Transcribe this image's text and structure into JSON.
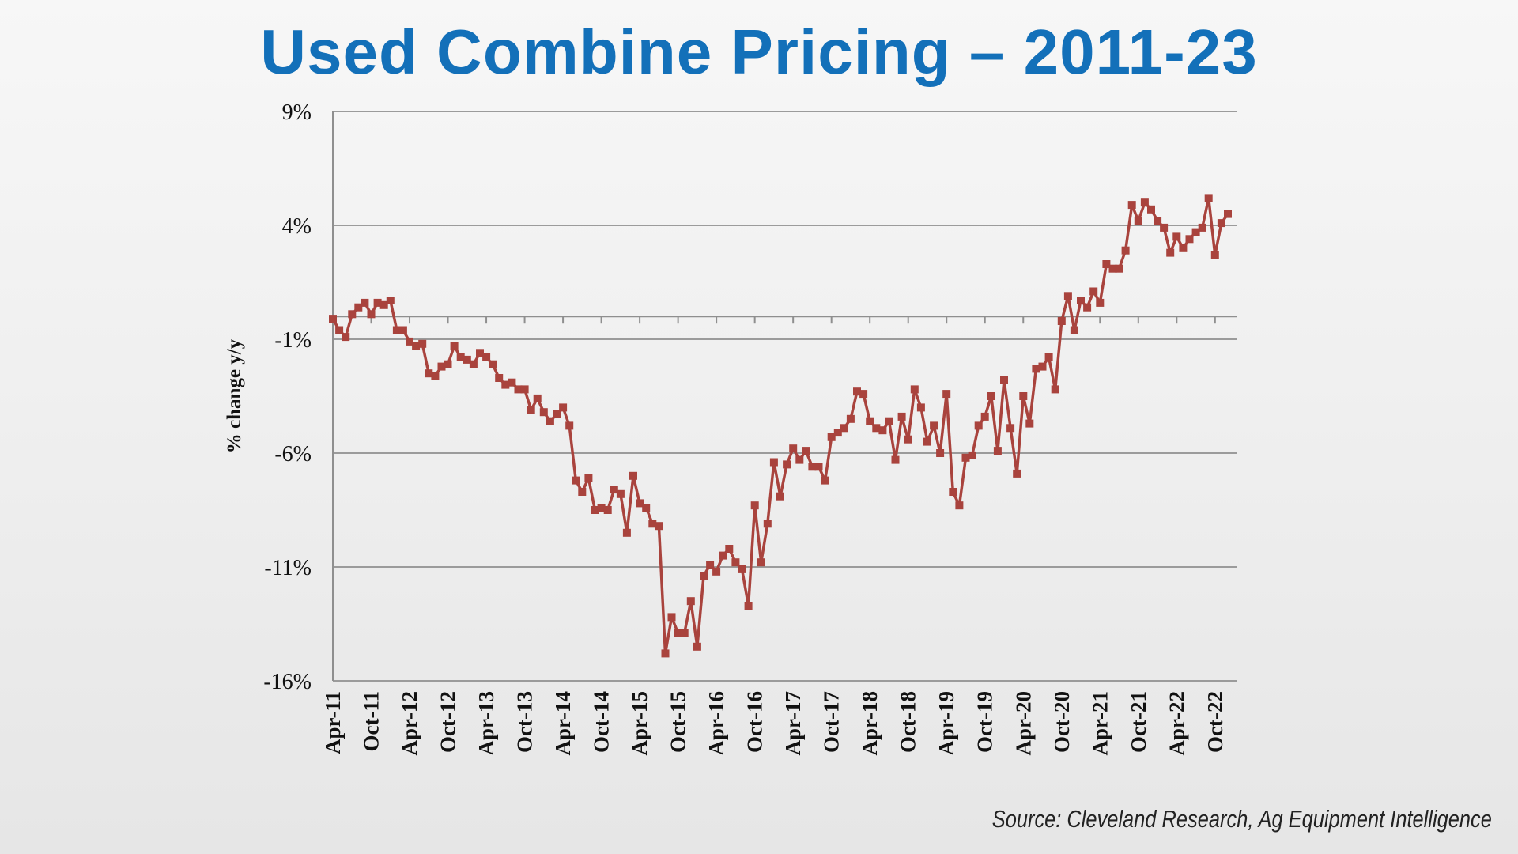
{
  "chart_data": {
    "type": "line",
    "title": "Used Combine Pricing – 2011-23",
    "ylabel": "% change y/y",
    "xlabel": "",
    "ylim": [
      -16,
      9
    ],
    "y_ticks": [
      9,
      4,
      -1,
      -6,
      -11,
      -16
    ],
    "y_tick_labels": [
      "9%",
      "4%",
      "-1%",
      "-6%",
      "-11%",
      "-16%"
    ],
    "x_ticks": [
      "Apr-11",
      "Oct-11",
      "Apr-12",
      "Oct-12",
      "Apr-13",
      "Oct-13",
      "Apr-14",
      "Oct-14",
      "Apr-15",
      "Oct-15",
      "Apr-16",
      "Oct-16",
      "Apr-17",
      "Oct-17",
      "Apr-18",
      "Oct-18",
      "Apr-19",
      "Oct-19",
      "Apr-20",
      "Oct-20",
      "Apr-21",
      "Oct-21",
      "Apr-22",
      "Oct-22"
    ],
    "grid": "horizontal",
    "series": [
      {
        "color": "#a9433d",
        "values": [
          -0.1,
          -0.6,
          -0.9,
          0.1,
          0.4,
          0.6,
          0.1,
          0.6,
          0.5,
          0.7,
          -0.6,
          -0.6,
          -1.1,
          -1.3,
          -1.2,
          -2.5,
          -2.6,
          -2.2,
          -2.1,
          -1.3,
          -1.8,
          -1.9,
          -2.1,
          -1.6,
          -1.8,
          -2.1,
          -2.7,
          -3.0,
          -2.9,
          -3.2,
          -3.2,
          -4.1,
          -3.6,
          -4.2,
          -4.6,
          -4.3,
          -4.0,
          -4.8,
          -7.2,
          -7.7,
          -7.1,
          -8.5,
          -8.4,
          -8.5,
          -7.6,
          -7.8,
          -9.5,
          -7.0,
          -8.2,
          -8.4,
          -9.1,
          -9.2,
          -14.8,
          -13.2,
          -13.9,
          -13.9,
          -12.5,
          -14.5,
          -11.4,
          -10.9,
          -11.2,
          -10.5,
          -10.2,
          -10.8,
          -11.1,
          -12.7,
          -8.3,
          -10.8,
          -9.1,
          -6.4,
          -7.9,
          -6.5,
          -5.8,
          -6.3,
          -5.9,
          -6.6,
          -6.6,
          -7.2,
          -5.3,
          -5.1,
          -4.9,
          -4.5,
          -3.3,
          -3.4,
          -4.6,
          -4.9,
          -5.0,
          -4.6,
          -6.3,
          -4.4,
          -5.4,
          -3.2,
          -4.0,
          -5.5,
          -4.8,
          -6.0,
          -3.4,
          -7.7,
          -8.3,
          -6.2,
          -6.1,
          -4.8,
          -4.4,
          -3.5,
          -5.9,
          -2.8,
          -4.9,
          -6.9,
          -3.5,
          -4.7,
          -2.3,
          -2.2,
          -1.8,
          -3.2,
          -0.2,
          0.9,
          -0.6,
          0.7,
          0.4,
          1.1,
          0.6,
          2.3,
          2.1,
          2.1,
          2.9,
          4.9,
          4.2,
          5.0,
          4.7,
          4.2,
          3.9,
          2.8,
          3.5,
          3.0,
          3.4,
          3.7,
          3.9,
          5.2,
          2.7,
          4.1,
          4.5
        ]
      }
    ]
  },
  "source_text": "Source: Cleveland Research, Ag Equipment Intelligence"
}
